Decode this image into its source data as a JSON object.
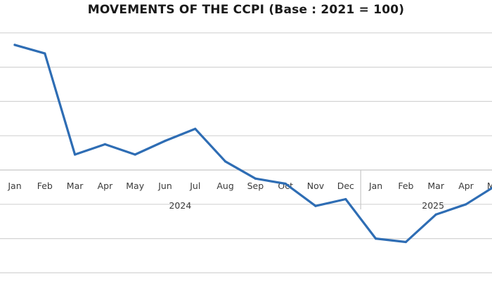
{
  "colors": {
    "series": "#2e6db4",
    "grid": "#d4d4d4"
  },
  "chart_data": {
    "type": "line",
    "title": "MOVEMENTS OF THE CCPI (Base : 2021 = 100)",
    "xlabel": "",
    "ylabel": "",
    "x": [
      "Jan",
      "Feb",
      "Mar",
      "Apr",
      "May",
      "Jun",
      "Jul",
      "Aug",
      "Sep",
      "Oct",
      "Nov",
      "Dec",
      "Jan",
      "Feb",
      "Mar",
      "Apr",
      "May"
    ],
    "x_groups": [
      {
        "label": "2024",
        "start": 0,
        "end": 11
      },
      {
        "label": "2025",
        "start": 12,
        "end": 16
      }
    ],
    "series": [
      {
        "values": [
          7.3,
          6.8,
          0.9,
          1.5,
          0.9,
          1.7,
          2.4,
          0.5,
          -0.5,
          -0.8,
          -2.1,
          -1.7,
          -4.0,
          -4.2,
          -2.6,
          -2.0,
          -0.9
        ]
      }
    ],
    "ylim": [
      -6,
      10
    ],
    "y_grid_step": 2,
    "x_axis_at": 0,
    "grid": true,
    "legend": "none"
  }
}
